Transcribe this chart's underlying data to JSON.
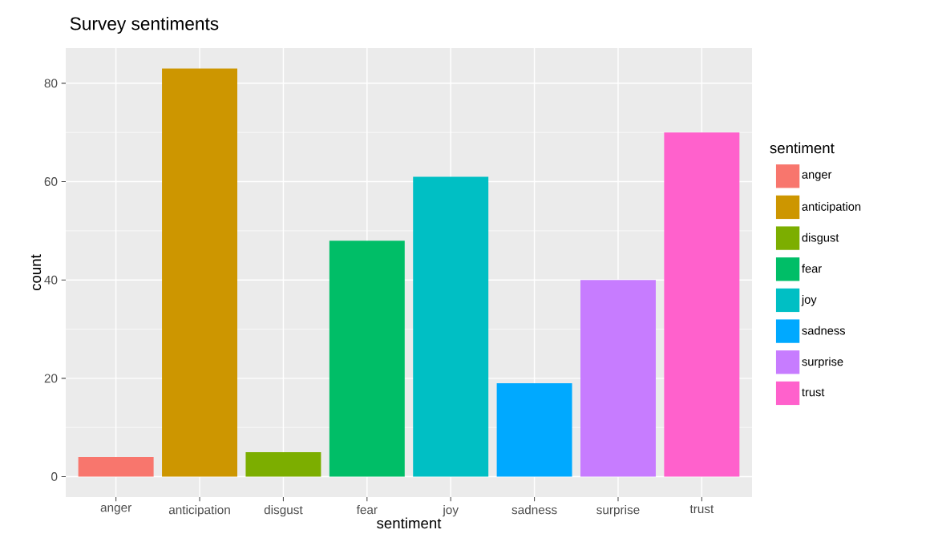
{
  "chart_data": {
    "type": "bar",
    "title": "Survey sentiments",
    "xlabel": "sentiment",
    "ylabel": "count",
    "legend_title": "sentiment",
    "categories": [
      "anger",
      "anticipation",
      "disgust",
      "fear",
      "joy",
      "sadness",
      "surprise",
      "trust"
    ],
    "series": [
      {
        "name": "anger",
        "color": "#f8766d",
        "values": [
          4,
          null,
          null,
          null,
          null,
          null,
          null,
          null
        ]
      },
      {
        "name": "anticipation",
        "color": "#cd9600",
        "values": [
          null,
          83,
          null,
          null,
          null,
          null,
          null,
          null
        ]
      },
      {
        "name": "disgust",
        "color": "#7cae00",
        "values": [
          null,
          null,
          5,
          null,
          null,
          null,
          null,
          null
        ]
      },
      {
        "name": "fear",
        "color": "#00be67",
        "values": [
          null,
          null,
          null,
          48,
          null,
          null,
          null,
          null
        ]
      },
      {
        "name": "joy",
        "color": "#00bfc4",
        "values": [
          null,
          null,
          null,
          null,
          61,
          null,
          null,
          null
        ]
      },
      {
        "name": "sadness",
        "color": "#00a9ff",
        "values": [
          null,
          null,
          null,
          null,
          null,
          19,
          null,
          null
        ]
      },
      {
        "name": "surprise",
        "color": "#c77cff",
        "values": [
          null,
          null,
          null,
          null,
          null,
          null,
          40,
          null
        ]
      },
      {
        "name": "trust",
        "color": "#ff61cc",
        "values": [
          null,
          null,
          null,
          null,
          null,
          null,
          null,
          70
        ]
      }
    ],
    "ylim": [
      -4.15,
      87.15
    ],
    "yticks": [
      0,
      20,
      40,
      60,
      80
    ],
    "grid": true,
    "legend": "right"
  }
}
